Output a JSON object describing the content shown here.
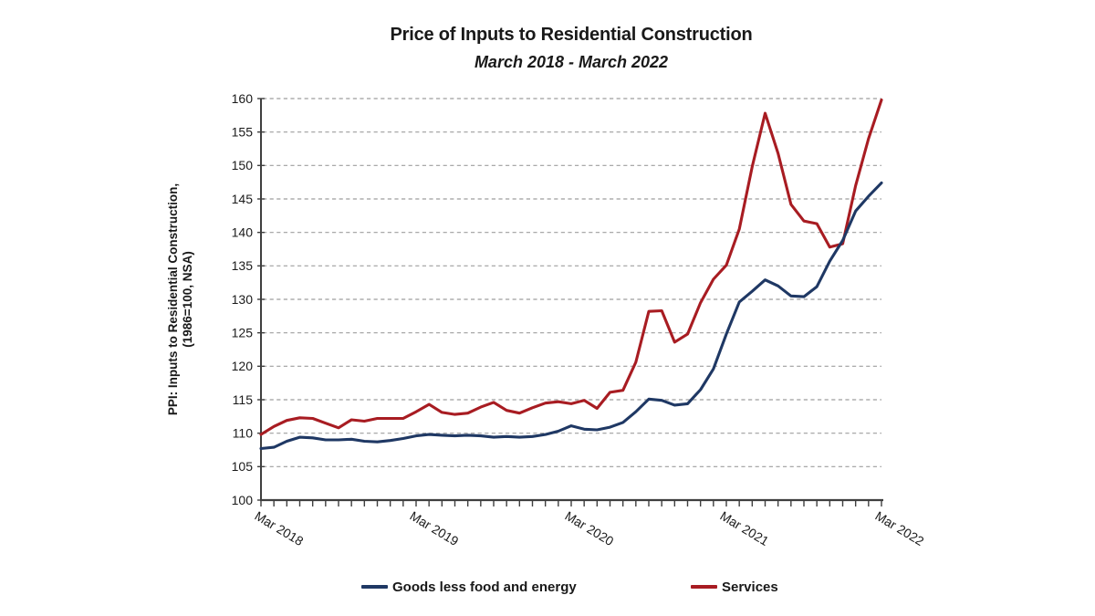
{
  "chart": {
    "title": "Price of Inputs to Residential Construction",
    "subtitle": "March 2018 - March 2022",
    "y_axis_title_line1": "PPI: Inputs to Residential Construction,",
    "y_axis_title_line2": "(1986=100, NSA)"
  },
  "legend": {
    "items": [
      {
        "label": "Goods less food and energy",
        "color": "#1F3864"
      },
      {
        "label": "Services",
        "color": "#A81C22"
      }
    ]
  },
  "chart_data": {
    "type": "line",
    "title": "Price of Inputs to Residential Construction",
    "subtitle": "March 2018 - March 2022",
    "ylabel": "PPI: Inputs to Residential Construction, (1986=100, NSA)",
    "xlabel": "",
    "ylim": [
      100,
      160
    ],
    "ytick_step": 5,
    "yticks": [
      100,
      105,
      110,
      115,
      120,
      125,
      130,
      135,
      140,
      145,
      150,
      155,
      160
    ],
    "grid": "horizontal-dashed",
    "legend_position": "bottom",
    "x_tick_labels": [
      "Mar 2018",
      "Mar 2019",
      "Mar 2020",
      "Mar 2021",
      "Mar 2022"
    ],
    "categories": [
      "Mar 2018",
      "Apr 2018",
      "May 2018",
      "Jun 2018",
      "Jul 2018",
      "Aug 2018",
      "Sep 2018",
      "Oct 2018",
      "Nov 2018",
      "Dec 2018",
      "Jan 2019",
      "Feb 2019",
      "Mar 2019",
      "Apr 2019",
      "May 2019",
      "Jun 2019",
      "Jul 2019",
      "Aug 2019",
      "Sep 2019",
      "Oct 2019",
      "Nov 2019",
      "Dec 2019",
      "Jan 2020",
      "Feb 2020",
      "Mar 2020",
      "Apr 2020",
      "May 2020",
      "Jun 2020",
      "Jul 2020",
      "Aug 2020",
      "Sep 2020",
      "Oct 2020",
      "Nov 2020",
      "Dec 2020",
      "Jan 2021",
      "Feb 2021",
      "Mar 2021",
      "Apr 2021",
      "May 2021",
      "Jun 2021",
      "Jul 2021",
      "Aug 2021",
      "Sep 2021",
      "Oct 2021",
      "Nov 2021",
      "Dec 2021",
      "Jan 2022",
      "Feb 2022",
      "Mar 2022"
    ],
    "series": [
      {
        "name": "Goods less food and energy",
        "color": "#1F3864",
        "values": [
          107.7,
          107.9,
          108.8,
          109.4,
          109.3,
          109.0,
          109.0,
          109.1,
          108.8,
          108.7,
          108.9,
          109.2,
          109.6,
          109.8,
          109.7,
          109.6,
          109.7,
          109.6,
          109.4,
          109.5,
          109.4,
          109.5,
          109.8,
          110.3,
          111.1,
          110.6,
          110.5,
          110.9,
          111.6,
          113.2,
          115.1,
          114.9,
          114.2,
          114.4,
          116.5,
          119.6,
          124.8,
          129.6,
          131.2,
          132.9,
          132.0,
          130.5,
          130.4,
          131.9,
          135.7,
          138.8,
          143.2,
          145.4,
          147.4
        ]
      },
      {
        "name": "Services",
        "color": "#A81C22",
        "values": [
          109.8,
          111.0,
          111.9,
          112.3,
          112.2,
          111.5,
          110.8,
          112.0,
          111.8,
          112.2,
          112.2,
          112.2,
          113.2,
          114.3,
          113.1,
          112.8,
          113.0,
          113.9,
          114.6,
          113.4,
          113.0,
          113.8,
          114.5,
          114.7,
          114.4,
          114.9,
          113.7,
          116.1,
          116.4,
          120.6,
          128.2,
          128.3,
          123.6,
          124.8,
          129.5,
          133.0,
          135.1,
          140.5,
          149.8,
          157.8,
          151.8,
          144.2,
          141.7,
          141.3,
          137.8,
          138.3,
          147.0,
          154.0,
          159.8
        ]
      }
    ]
  }
}
